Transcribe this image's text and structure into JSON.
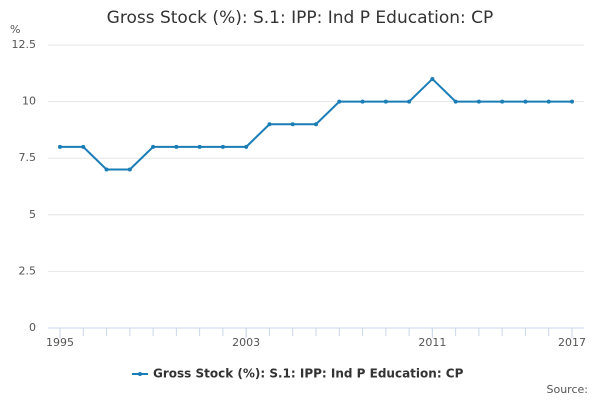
{
  "chart_data": {
    "type": "line",
    "title": "Gross Stock (%): S.1: IPP: Ind P Education: CP",
    "y_unit": "%",
    "source": "Source:",
    "x": [
      1995,
      1996,
      1997,
      1998,
      1999,
      2000,
      2001,
      2002,
      2003,
      2004,
      2005,
      2006,
      2007,
      2008,
      2009,
      2010,
      2011,
      2012,
      2013,
      2014,
      2015,
      2016,
      2017
    ],
    "series": [
      {
        "name": "Gross Stock (%): S.1: IPP: Ind P Education: CP",
        "color": "#1a7db6",
        "values": [
          8,
          8,
          7,
          7,
          8,
          8,
          8,
          8,
          8,
          9,
          9,
          9,
          10,
          10,
          10,
          10,
          11,
          10,
          10,
          10,
          10,
          10,
          10
        ]
      }
    ],
    "xlim": [
      1995,
      2017
    ],
    "xticks": [
      1995,
      2003,
      2011,
      2017
    ],
    "ylim": [
      0,
      12.5
    ],
    "yticks": [
      0,
      2.5,
      5,
      7.5,
      10,
      12.5
    ],
    "grid": true
  }
}
